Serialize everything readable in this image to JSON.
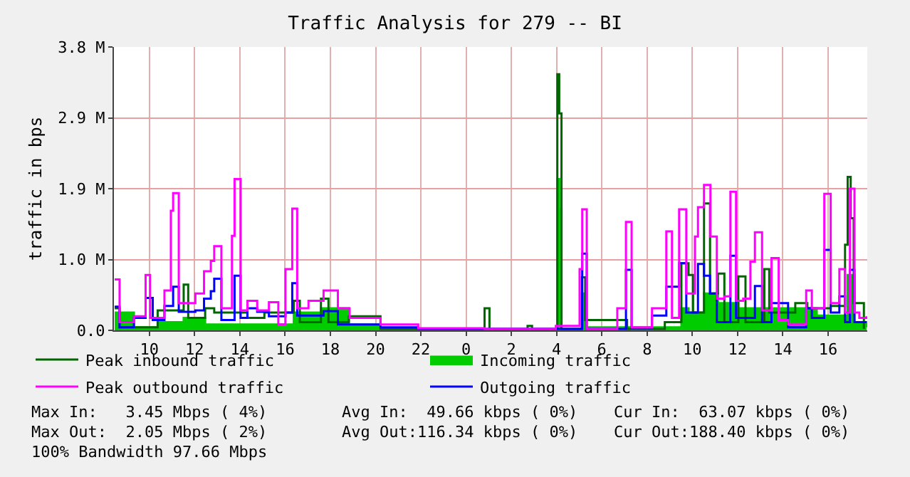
{
  "chart_data": {
    "type": "step",
    "title": "Traffic Analysis for 279 -- BI",
    "ylabel": "traffic in bps",
    "xlim": [
      "--01-01T08:26",
      "--01-02T17:44"
    ],
    "xticks": [
      {
        "value": "--01-01T10:00",
        "label": "10"
      },
      {
        "value": "--01-01T12:00",
        "label": "12"
      },
      {
        "value": "--01-01T14:00",
        "label": "14"
      },
      {
        "value": "--01-01T16:00",
        "label": "16"
      },
      {
        "value": "--01-01T18:00",
        "label": "18"
      },
      {
        "value": "--01-01T20:00",
        "label": "20"
      },
      {
        "value": "--01-01T22:00",
        "label": "22"
      },
      {
        "value": "--01-02T00:00",
        "label": "0"
      },
      {
        "value": "--01-02T02:00",
        "label": "2"
      },
      {
        "value": "--01-02T04:00",
        "label": "4"
      },
      {
        "value": "--01-02T06:00",
        "label": "6"
      },
      {
        "value": "--01-02T08:00",
        "label": "8"
      },
      {
        "value": "--01-02T10:00",
        "label": "10"
      },
      {
        "value": "--01-02T12:00",
        "label": "12"
      },
      {
        "value": "--01-02T14:00",
        "label": "14"
      },
      {
        "value": "--01-02T16:00",
        "label": "16"
      }
    ],
    "ylim": [
      0,
      3840000
    ],
    "yticks": [
      {
        "value": 0,
        "label": "0.0"
      },
      {
        "value": 960000,
        "label": "1.0 M"
      },
      {
        "value": 1920000,
        "label": "1.9 M"
      },
      {
        "value": 2880000,
        "label": "2.9 M"
      },
      {
        "value": 3840000,
        "label": "3.8 M"
      }
    ],
    "grid": true,
    "legend": "bottom",
    "series": [
      {
        "name": "Incoming traffic",
        "color": "#00cc00",
        "type": "area",
        "x": [
          "--01-01T08:28",
          "--01-01T09:19",
          "--01-01T10:22",
          "--01-01T11:31",
          "--01-01T12:28",
          "--01-01T14:20",
          "--01-01T16:23",
          "--01-01T17:35",
          "--01-01T18:49",
          "--01-01T20:13",
          "--01-02T00:49",
          "--01-02T03:58",
          "--01-02T04:02",
          "--01-02T04:07",
          "--01-02T04:13",
          "--01-02T05:07",
          "--01-02T05:16",
          "--01-02T09:31",
          "--01-02T09:50",
          "--01-02T10:31",
          "--01-02T11:08",
          "--01-02T12:02",
          "--01-02T13:11",
          "--01-02T15:30",
          "--01-02T16:52",
          "--01-02T17:10",
          "--01-02T17:42"
        ],
        "values": [
          240000,
          40000,
          110000,
          170000,
          80000,
          80000,
          240000,
          300000,
          80000,
          0,
          0,
          0,
          2050000,
          1650000,
          0,
          500000,
          40000,
          300000,
          240000,
          500000,
          370000,
          300000,
          300000,
          200000,
          750000,
          110000,
          40000
        ]
      },
      {
        "name": "Peak inbound traffic",
        "color": "#006600",
        "x": [
          "--01-01T08:28",
          "--01-01T08:41",
          "--01-01T10:22",
          "--01-01T11:31",
          "--01-01T11:43",
          "--01-01T12:28",
          "--01-01T12:52",
          "--01-01T14:20",
          "--01-01T15:05",
          "--01-01T16:23",
          "--01-01T16:39",
          "--01-01T17:35",
          "--01-01T17:55",
          "--01-01T18:49",
          "--01-01T20:13",
          "--01-01T21:53",
          "--01-02T00:49",
          "--01-02T01:02",
          "--01-02T02:43",
          "--01-02T02:55",
          "--01-02T03:58",
          "--01-02T04:02",
          "--01-02T04:07",
          "--01-02T04:13",
          "--01-02T04:58",
          "--01-02T05:07",
          "--01-02T05:16",
          "--01-02T07:07",
          "--01-02T08:47",
          "--01-02T09:31",
          "--01-02T09:50",
          "--01-02T10:02",
          "--01-02T10:31",
          "--01-02T10:47",
          "--01-02T11:08",
          "--01-02T11:25",
          "--01-02T12:02",
          "--01-02T12:21",
          "--01-02T13:11",
          "--01-02T13:24",
          "--01-02T14:33",
          "--01-02T15:05",
          "--01-02T16:07",
          "--01-02T16:45",
          "--01-02T16:52",
          "--01-02T17:00",
          "--01-02T17:08",
          "--01-02T17:35"
        ],
        "values": [
          300000,
          40000,
          270000,
          620000,
          170000,
          300000,
          240000,
          170000,
          240000,
          400000,
          110000,
          430000,
          110000,
          190000,
          20000,
          20000,
          300000,
          20000,
          60000,
          20000,
          20000,
          3470000,
          2940000,
          20000,
          20000,
          720000,
          140000,
          20000,
          110000,
          910000,
          750000,
          240000,
          1720000,
          500000,
          770000,
          110000,
          730000,
          110000,
          830000,
          240000,
          370000,
          300000,
          330000,
          1160000,
          2080000,
          1520000,
          370000,
          20000
        ]
      },
      {
        "name": "Outgoing traffic",
        "color": "#0000ff",
        "x": [
          "--01-01T08:28",
          "--01-01T08:41",
          "--01-01T09:19",
          "--01-01T09:50",
          "--01-01T10:09",
          "--01-01T10:40",
          "--01-01T11:03",
          "--01-01T11:18",
          "--01-01T12:02",
          "--01-01T12:25",
          "--01-01T12:43",
          "--01-01T12:52",
          "--01-01T13:11",
          "--01-01T13:46",
          "--01-01T14:02",
          "--01-01T14:20",
          "--01-01T14:46",
          "--01-01T15:17",
          "--01-01T16:01",
          "--01-01T16:19",
          "--01-01T16:32",
          "--01-01T17:02",
          "--01-01T17:42",
          "--01-01T18:20",
          "--01-01T20:13",
          "--01-01T21:53",
          "--01-02T00:49",
          "--01-02T03:58",
          "--01-02T05:08",
          "--01-02T05:20",
          "--01-02T07:04",
          "--01-02T07:19",
          "--01-02T08:13",
          "--01-02T08:51",
          "--01-02T09:25",
          "--01-02T09:44",
          "--01-02T10:15",
          "--01-02T10:31",
          "--01-02T10:47",
          "--01-02T11:05",
          "--01-02T11:41",
          "--01-02T11:56",
          "--01-02T12:46",
          "--01-02T13:05",
          "--01-02T13:30",
          "--01-02T14:14",
          "--01-02T15:02",
          "--01-02T15:17",
          "--01-02T15:50",
          "--01-02T16:07",
          "--01-02T16:30",
          "--01-02T16:45",
          "--01-02T16:58",
          "--01-02T17:10",
          "--01-02T17:42"
        ],
        "values": [
          320000,
          40000,
          170000,
          440000,
          140000,
          330000,
          590000,
          250000,
          270000,
          430000,
          530000,
          700000,
          140000,
          740000,
          170000,
          300000,
          250000,
          190000,
          240000,
          640000,
          200000,
          200000,
          260000,
          80000,
          40000,
          20000,
          20000,
          20000,
          1040000,
          20000,
          820000,
          30000,
          200000,
          590000,
          910000,
          240000,
          900000,
          740000,
          500000,
          110000,
          1010000,
          170000,
          600000,
          110000,
          370000,
          40000,
          300000,
          170000,
          1090000,
          240000,
          460000,
          110000,
          820000,
          110000,
          110000
        ]
      },
      {
        "name": "Peak outbound traffic",
        "color": "#ff00ff",
        "x": [
          "--01-01T08:28",
          "--01-01T08:41",
          "--01-01T09:19",
          "--01-01T09:50",
          "--01-01T10:02",
          "--01-01T10:40",
          "--01-01T10:57",
          "--01-01T11:03",
          "--01-01T11:18",
          "--01-01T12:02",
          "--01-01T12:25",
          "--01-01T12:43",
          "--01-01T12:52",
          "--01-01T13:11",
          "--01-01T13:39",
          "--01-01T13:46",
          "--01-01T14:02",
          "--01-01T14:20",
          "--01-01T14:46",
          "--01-01T15:17",
          "--01-01T15:42",
          "--01-01T16:01",
          "--01-01T16:19",
          "--01-01T16:32",
          "--01-01T17:02",
          "--01-01T17:42",
          "--01-01T18:20",
          "--01-01T18:51",
          "--01-01T20:13",
          "--01-01T21:53",
          "--01-02T00:03",
          "--01-02T00:49",
          "--01-02T03:58",
          "--01-02T05:01",
          "--01-02T05:08",
          "--01-02T05:20",
          "--01-02T06:41",
          "--01-02T07:04",
          "--01-02T07:19",
          "--01-02T08:13",
          "--01-02T08:51",
          "--01-02T09:06",
          "--01-02T09:25",
          "--01-02T09:44",
          "--01-02T10:07",
          "--01-02T10:15",
          "--01-02T10:31",
          "--01-02T10:48",
          "--01-02T11:05",
          "--01-02T11:25",
          "--01-02T11:41",
          "--01-02T11:56",
          "--01-02T12:15",
          "--01-02T12:34",
          "--01-02T12:46",
          "--01-02T13:05",
          "--01-02T13:30",
          "--01-02T13:49",
          "--01-02T14:14",
          "--01-02T15:02",
          "--01-02T15:17",
          "--01-02T15:50",
          "--01-02T16:07",
          "--01-02T16:30",
          "--01-02T16:45",
          "--01-02T16:58",
          "--01-02T17:10",
          "--01-02T17:23",
          "--01-02T17:42"
        ],
        "values": [
          690000,
          110000,
          190000,
          750000,
          170000,
          540000,
          1620000,
          1860000,
          370000,
          500000,
          800000,
          940000,
          1140000,
          300000,
          1280000,
          2050000,
          270000,
          400000,
          270000,
          380000,
          80000,
          830000,
          1650000,
          300000,
          400000,
          540000,
          300000,
          170000,
          80000,
          30000,
          30000,
          20000,
          60000,
          830000,
          1640000,
          20000,
          300000,
          1470000,
          40000,
          300000,
          1340000,
          170000,
          1640000,
          500000,
          1270000,
          1670000,
          1970000,
          1270000,
          430000,
          460000,
          1880000,
          400000,
          430000,
          930000,
          1330000,
          270000,
          980000,
          140000,
          80000,
          540000,
          300000,
          1850000,
          370000,
          830000,
          240000,
          1920000,
          240000,
          170000,
          190000
        ]
      }
    ],
    "annotations": [
      "Max In:   3.45 Mbps ( 4%)",
      "Avg In:  49.66 kbps ( 0%)",
      "Cur In:  63.07 kbps ( 0%)",
      "Max Out:  2.05 Mbps ( 2%)",
      "Avg Out:116.34 kbps ( 0%)",
      "Cur Out:188.40 kbps ( 0%)",
      "100% Bandwidth 97.66 Mbps"
    ]
  }
}
